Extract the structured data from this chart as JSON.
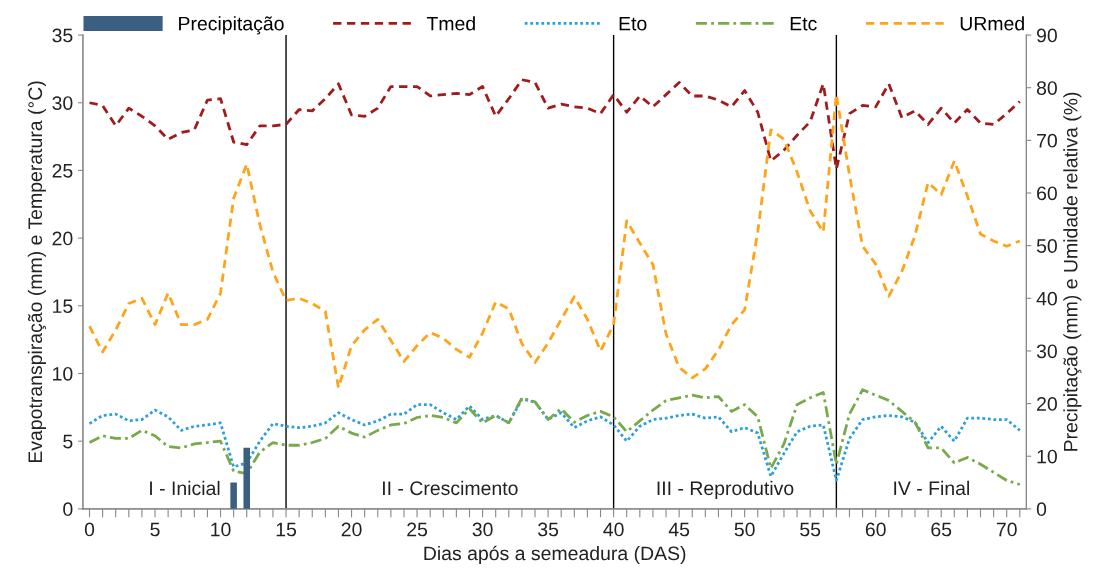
{
  "chart_data": {
    "type": "line",
    "xlabel": "Dias após a semeadura (DAS)",
    "ylabel": "Evapotranspiração (mm) e Temperatura (°C)",
    "y2label": "Precipitação (mm) e Umidade relativa (%)",
    "x": [
      0,
      1,
      2,
      3,
      4,
      5,
      6,
      7,
      8,
      9,
      10,
      11,
      12,
      13,
      14,
      15,
      16,
      17,
      18,
      19,
      20,
      21,
      22,
      23,
      24,
      25,
      26,
      27,
      28,
      29,
      30,
      31,
      32,
      33,
      34,
      35,
      36,
      37,
      38,
      39,
      40,
      41,
      42,
      43,
      44,
      45,
      46,
      47,
      48,
      49,
      50,
      51,
      52,
      53,
      54,
      55,
      56,
      57,
      58,
      59,
      60,
      61,
      62,
      63,
      64,
      65,
      66,
      67,
      68,
      69,
      70,
      71
    ],
    "series": [
      {
        "name": "Precipitação",
        "type": "bar",
        "axis": "y2",
        "color": "#3b5f80",
        "x": [
          11,
          12
        ],
        "values": [
          5,
          11.6
        ]
      },
      {
        "name": "Tmed",
        "line_style": "dashed",
        "color": "#a01c1c",
        "values": [
          30.0,
          29.8,
          28.3,
          29.6,
          29.0,
          28.3,
          27.3,
          27.8,
          28.0,
          30.2,
          30.3,
          27.1,
          26.9,
          28.3,
          28.3,
          28.4,
          29.5,
          29.4,
          30.3,
          31.4,
          29.1,
          29.0,
          29.6,
          31.2,
          31.2,
          31.2,
          30.5,
          30.6,
          30.7,
          30.6,
          31.2,
          29.0,
          30.3,
          31.7,
          31.5,
          29.6,
          29.9,
          29.7,
          29.6,
          29.2,
          30.6,
          29.3,
          30.5,
          29.7,
          30.6,
          31.5,
          30.5,
          30.5,
          30.2,
          29.7,
          30.9,
          29.3,
          25.7,
          26.5,
          27.6,
          28.6,
          31.4,
          25.1,
          29.2,
          29.8,
          29.7,
          31.4,
          28.9,
          29.4,
          28.4,
          29.6,
          28.5,
          29.5,
          28.5,
          28.4,
          29.2,
          30.1
        ]
      },
      {
        "name": "Eto",
        "line_style": "dotted",
        "color": "#2a9fe0",
        "values": [
          6.3,
          6.9,
          7.0,
          6.5,
          6.6,
          7.3,
          6.8,
          5.8,
          6.1,
          6.2,
          6.35,
          3.1,
          3.4,
          5.0,
          6.3,
          6.1,
          6.0,
          6.1,
          6.35,
          7.1,
          6.6,
          6.2,
          6.5,
          7.0,
          7.0,
          7.7,
          7.7,
          7.1,
          6.6,
          7.6,
          6.6,
          6.9,
          6.35,
          8.1,
          7.9,
          6.6,
          7.1,
          6.0,
          6.5,
          6.8,
          6.2,
          5.0,
          6.1,
          6.6,
          6.7,
          6.9,
          7.0,
          6.7,
          6.8,
          5.7,
          6.0,
          5.6,
          2.4,
          4.1,
          5.7,
          6.1,
          6.2,
          2.1,
          5.2,
          6.6,
          6.8,
          6.9,
          6.8,
          6.4,
          4.9,
          6.1,
          5.0,
          6.7,
          6.7,
          6.6,
          6.6,
          5.8
        ]
      },
      {
        "name": "Etc",
        "line_style": "dashdot",
        "color": "#78a94a",
        "values": [
          4.9,
          5.4,
          5.2,
          5.2,
          5.8,
          5.4,
          4.6,
          4.5,
          4.8,
          4.9,
          5.0,
          2.8,
          2.6,
          4.2,
          4.9,
          4.7,
          4.7,
          4.9,
          5.2,
          6.1,
          5.6,
          5.3,
          5.8,
          6.2,
          6.3,
          6.75,
          6.9,
          6.75,
          6.35,
          7.4,
          6.35,
          6.9,
          6.35,
          8.2,
          7.9,
          6.6,
          7.4,
          6.4,
          6.9,
          7.2,
          6.8,
          5.7,
          6.5,
          7.3,
          8.0,
          8.2,
          8.4,
          8.2,
          8.3,
          7.2,
          7.7,
          6.8,
          3.0,
          4.8,
          7.7,
          8.2,
          8.6,
          3.3,
          7.0,
          8.8,
          8.4,
          8.0,
          7.2,
          6.4,
          4.5,
          4.5,
          3.4,
          3.8,
          3.3,
          2.7,
          2.1,
          1.8
        ]
      },
      {
        "name": "URmed",
        "axis": "y2",
        "line_style": "dashed",
        "color": "#ffa31a",
        "values": [
          34.7,
          29.8,
          34,
          39,
          40,
          35,
          41,
          35,
          35,
          36,
          41,
          59,
          65.5,
          54,
          45,
          39.6,
          40,
          39,
          37.5,
          23,
          31,
          34,
          36,
          32,
          28,
          31,
          33.5,
          32.4,
          30.3,
          28.8,
          33.4,
          39.3,
          38,
          31.4,
          27.8,
          31.5,
          36,
          40.3,
          36,
          30,
          35,
          54.7,
          50.5,
          46.4,
          33.2,
          26.9,
          24.9,
          26.6,
          30.2,
          35,
          37.8,
          52.6,
          72,
          70.2,
          64,
          56.6,
          52.6,
          78.7,
          63.4,
          49.9,
          46.5,
          40.4,
          45.1,
          51.9,
          62,
          59.7,
          66.1,
          59.4,
          52.2,
          50.9,
          49.9,
          50.9
        ]
      }
    ],
    "xlim": [
      -0.5,
      71.5
    ],
    "xticks": [
      0,
      {
        "value": 1,
        "label": null
      },
      {
        "value": 2,
        "label": null
      },
      {
        "value": 3,
        "label": null
      },
      {
        "value": 4,
        "label": null
      },
      5,
      {
        "value": 6,
        "label": null
      },
      {
        "value": 7,
        "label": null
      },
      {
        "value": 8,
        "label": null
      },
      {
        "value": 9,
        "label": null
      },
      10,
      {
        "value": 11,
        "label": null
      },
      {
        "value": 12,
        "label": null
      },
      {
        "value": 13,
        "label": null
      },
      {
        "value": 14,
        "label": null
      },
      15,
      {
        "value": 16,
        "label": null
      },
      {
        "value": 17,
        "label": null
      },
      {
        "value": 18,
        "label": null
      },
      {
        "value": 19,
        "label": null
      },
      20,
      {
        "value": 21,
        "label": null
      },
      {
        "value": 22,
        "label": null
      },
      {
        "value": 23,
        "label": null
      },
      {
        "value": 24,
        "label": null
      },
      25,
      {
        "value": 26,
        "label": null
      },
      {
        "value": 27,
        "label": null
      },
      {
        "value": 28,
        "label": null
      },
      {
        "value": 29,
        "label": null
      },
      30,
      {
        "value": 31,
        "label": null
      },
      {
        "value": 32,
        "label": null
      },
      {
        "value": 33,
        "label": null
      },
      {
        "value": 34,
        "label": null
      },
      35,
      {
        "value": 36,
        "label": null
      },
      {
        "value": 37,
        "label": null
      },
      {
        "value": 38,
        "label": null
      },
      {
        "value": 39,
        "label": null
      },
      40,
      {
        "value": 41,
        "label": null
      },
      {
        "value": 42,
        "label": null
      },
      {
        "value": 43,
        "label": null
      },
      {
        "value": 44,
        "label": null
      },
      45,
      {
        "value": 46,
        "label": null
      },
      {
        "value": 47,
        "label": null
      },
      {
        "value": 48,
        "label": null
      },
      {
        "value": 49,
        "label": null
      },
      50,
      {
        "value": 51,
        "label": null
      },
      {
        "value": 52,
        "label": null
      },
      {
        "value": 53,
        "label": null
      },
      {
        "value": 54,
        "label": null
      },
      55,
      {
        "value": 56,
        "label": null
      },
      {
        "value": 57,
        "label": null
      },
      {
        "value": 58,
        "label": null
      },
      {
        "value": 59,
        "label": null
      },
      60,
      {
        "value": 61,
        "label": null
      },
      {
        "value": 62,
        "label": null
      },
      {
        "value": 63,
        "label": null
      },
      {
        "value": 64,
        "label": null
      },
      65,
      {
        "value": 66,
        "label": null
      },
      {
        "value": 67,
        "label": null
      },
      {
        "value": 68,
        "label": null
      },
      {
        "value": 69,
        "label": null
      },
      70,
      {
        "value": 71,
        "label": null
      }
    ],
    "ylim": [
      0,
      35
    ],
    "yticks": [
      0,
      5,
      10,
      15,
      20,
      25,
      30,
      35
    ],
    "y2lim": [
      0,
      90
    ],
    "y2ticks": [
      0,
      10,
      20,
      30,
      40,
      50,
      60,
      70,
      80,
      90
    ],
    "ref_lines": [
      {
        "axis": "x",
        "value": 15,
        "color": "#000000"
      },
      {
        "axis": "x",
        "value": 40,
        "color": "#000000"
      },
      {
        "axis": "x",
        "value": 57,
        "color": "#000000"
      }
    ],
    "annotations": [
      "I - Inicial",
      "II - Crescimento",
      "III - Reprodutivo",
      "IV - Final"
    ],
    "grid": false,
    "legend": "top",
    "marker": "none"
  }
}
